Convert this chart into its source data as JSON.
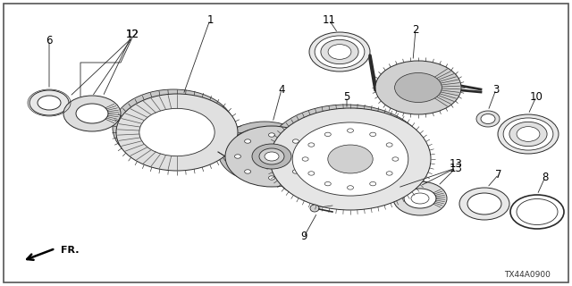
{
  "bg_color": "#ffffff",
  "ec": "#2a2a2a",
  "diagram_code": "TX44A0900",
  "arrow_label": "FR.",
  "figsize": [
    6.4,
    3.2
  ],
  "dpi": 100
}
